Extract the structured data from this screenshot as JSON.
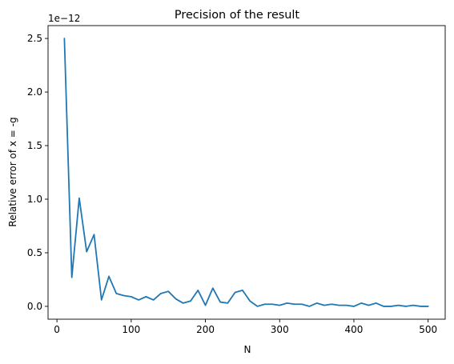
{
  "chart_data": {
    "type": "line",
    "title": "Precision of the result",
    "xlabel": "N",
    "ylabel": "Relative error of x = -g",
    "offset_text": "1e−12",
    "xlim": [
      -12,
      523
    ],
    "ylim": [
      -0.12,
      2.62
    ],
    "x_ticks": [
      0,
      100,
      200,
      300,
      400,
      500
    ],
    "x_tick_labels": [
      "0",
      "100",
      "200",
      "300",
      "400",
      "500"
    ],
    "y_ticks": [
      0.0,
      0.5,
      1.0,
      1.5,
      2.0,
      2.5
    ],
    "y_tick_labels": [
      "0.0",
      "0.5",
      "1.0",
      "1.5",
      "2.0",
      "2.5"
    ],
    "grid": false,
    "line_color": "#1f77b4",
    "series": [
      {
        "x": [
          10,
          20,
          30,
          40,
          50,
          60,
          70,
          80,
          90,
          100,
          110,
          120,
          130,
          140,
          150,
          160,
          170,
          180,
          190,
          200,
          210,
          220,
          230,
          240,
          250,
          260,
          270,
          280,
          290,
          300,
          310,
          320,
          330,
          340,
          350,
          360,
          370,
          380,
          390,
          400,
          410,
          420,
          430,
          440,
          450,
          460,
          470,
          480,
          490,
          500
        ],
        "values": [
          2.5,
          0.27,
          1.01,
          0.51,
          0.67,
          0.06,
          0.28,
          0.12,
          0.1,
          0.09,
          0.06,
          0.09,
          0.06,
          0.12,
          0.14,
          0.07,
          0.03,
          0.05,
          0.15,
          0.01,
          0.17,
          0.04,
          0.03,
          0.13,
          0.15,
          0.05,
          0.0,
          0.02,
          0.02,
          0.01,
          0.03,
          0.02,
          0.02,
          0.0,
          0.03,
          0.01,
          0.02,
          0.01,
          0.01,
          0.0,
          0.03,
          0.01,
          0.03,
          0.0,
          0.0,
          0.01,
          0.0,
          0.01,
          0.0,
          0.0
        ]
      }
    ]
  }
}
